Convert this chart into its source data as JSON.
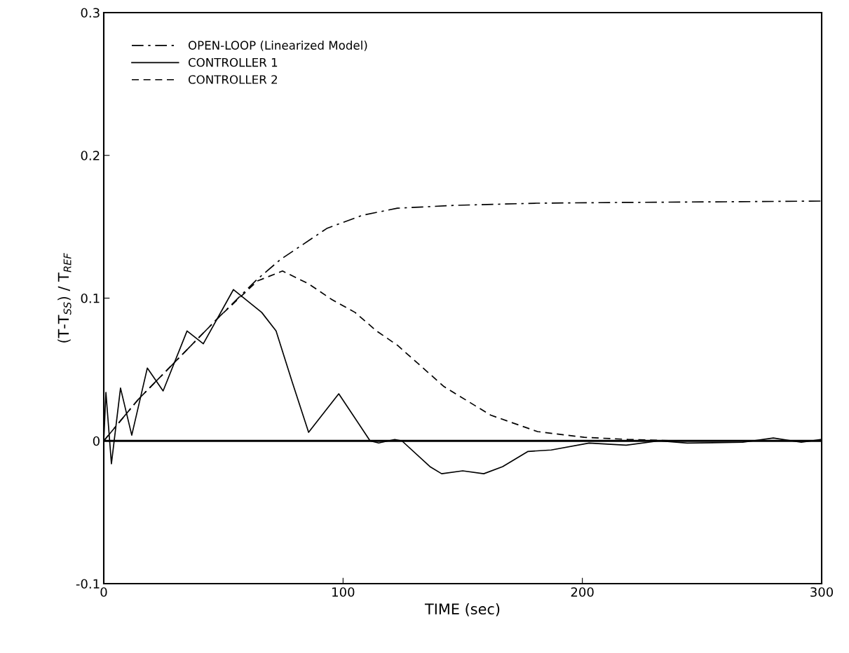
{
  "chart_data": {
    "type": "line",
    "xlabel": "TIME (sec)",
    "ylabel": "(T-T$_{SS}$) / T$_{REF}$",
    "xlim": [
      0,
      300
    ],
    "ylim": [
      -0.1,
      0.3
    ],
    "xticks": [
      0,
      100,
      200,
      300
    ],
    "yticks": [
      -0.1,
      0,
      0.1,
      0.2,
      0.3
    ],
    "grid": false,
    "legend": "top left",
    "marker": "none",
    "ref_lines": [
      {
        "axis": "y",
        "value": 0,
        "color": "#000000",
        "line_style": "solid"
      }
    ],
    "series": [
      {
        "name": "OPEN-LOOP (Linearized Model)",
        "color": "#000000",
        "line_style": "dashdot",
        "x": [
          0,
          14.4,
          29,
          48.3,
          64,
          73.8,
          93.4,
          108,
          122.7,
          147,
          181,
          215,
          260,
          300
        ],
        "values": [
          0,
          0.029,
          0.054,
          0.087,
          0.113,
          0.127,
          0.149,
          0.158,
          0.163,
          0.165,
          0.1665,
          0.167,
          0.1675,
          0.168
        ]
      },
      {
        "name": "CONTROLLER 1",
        "color": "#000000",
        "line_style": "solid",
        "x": [
          0,
          0.9,
          3.2,
          7,
          11.7,
          18.2,
          24.8,
          34.8,
          41.6,
          54.2,
          66,
          72,
          78.8,
          85.6,
          98.2,
          111.3,
          114.9,
          121.6,
          124.6,
          136.3,
          141.2,
          150,
          158.8,
          166.7,
          177.3,
          187,
          202.8,
          218.3,
          232,
          243.8,
          267,
          279.8,
          291.5,
          300
        ],
        "values": [
          0,
          0.034,
          -0.016,
          0.037,
          0.004,
          0.051,
          0.035,
          0.077,
          0.068,
          0.106,
          0.09,
          0.077,
          0.041,
          0.006,
          0.033,
          0,
          -0.0015,
          0.001,
          0,
          -0.018,
          -0.023,
          -0.021,
          -0.023,
          -0.018,
          -0.0074,
          -0.0064,
          -0.0015,
          -0.003,
          0,
          -0.0015,
          -0.001,
          0.002,
          -0.001,
          0.001
        ]
      },
      {
        "name": "CONTROLLER 2",
        "color": "#000000",
        "line_style": "dashed",
        "x": [
          0,
          14.4,
          29,
          48.3,
          64.2,
          74.7,
          85.6,
          95.3,
          105,
          114,
          122.7,
          142.2,
          161.7,
          181.3,
          200.8,
          219.4,
          240,
          300
        ],
        "values": [
          0,
          0.029,
          0.054,
          0.087,
          0.112,
          0.119,
          0.11,
          0.099,
          0.09,
          0.077,
          0.067,
          0.038,
          0.018,
          0.0065,
          0.0025,
          0.001,
          0,
          0
        ]
      }
    ]
  }
}
